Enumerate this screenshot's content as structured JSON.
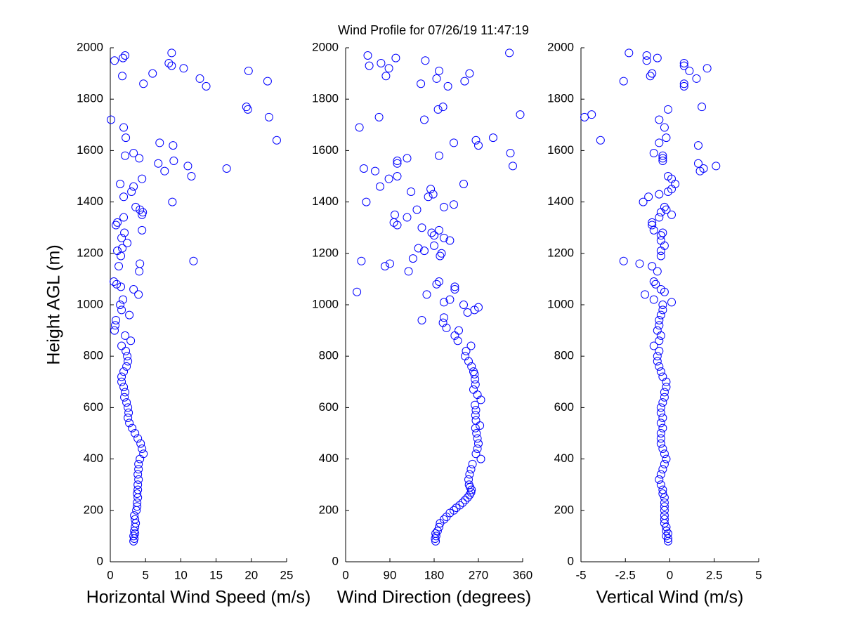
{
  "chart_data": [
    {
      "type": "scatter",
      "title": "Wind Profile for  07/26/19 11:47:19",
      "xlabel": "Horizontal Wind Speed (m/s)",
      "ylabel": "Height AGL (m)",
      "color": "#0000ff",
      "xlim": [
        0,
        25
      ],
      "xticks": [
        0,
        5,
        10,
        15,
        20,
        25
      ],
      "ylim": [
        0,
        2000
      ],
      "yticks": [
        0,
        200,
        400,
        600,
        800,
        1000,
        1200,
        1400,
        1600,
        1800,
        2000
      ],
      "x": [
        3.3,
        3.4,
        3.3,
        3.5,
        3.4,
        3.5,
        3.6,
        3.5,
        3.4,
        3.7,
        3.8,
        3.8,
        3.9,
        3.8,
        3.9,
        3.9,
        4.0,
        3.9,
        4.0,
        4.0,
        4.2,
        4.7,
        4.5,
        4.3,
        3.9,
        3.5,
        3.1,
        2.7,
        2.5,
        2.6,
        2.5,
        2.3,
        2.0,
        2.1,
        1.9,
        1.6,
        1.6,
        1.9,
        2.3,
        2.5,
        2.4,
        2.2,
        1.6,
        2.9,
        2.1,
        0.6,
        0.7,
        0.8,
        2.7,
        1.6,
        1.4,
        1.8,
        4.0,
        3.3,
        1.5,
        0.9,
        0.5,
        4.1,
        1.2,
        4.2,
        11.8,
        1.5,
        1.0,
        1.7,
        2.4,
        1.6,
        2.0,
        4.5,
        0.8,
        1.0,
        1.9,
        4.5,
        4.6,
        4.2,
        3.6,
        8.8,
        1.9,
        3.0,
        3.3,
        1.4,
        4.5,
        11.5,
        7.7,
        16.5,
        11.0,
        6.8,
        9.0,
        4.1,
        2.1,
        3.3,
        8.9,
        7.0,
        23.6,
        2.2,
        1.9,
        0.1,
        22.5,
        19.5,
        19.3,
        13.6,
        4.7,
        22.3,
        12.7,
        1.7,
        6.0,
        19.6,
        10.4,
        8.7,
        8.3,
        0.6,
        1.8,
        2.1,
        8.7
      ],
      "y": [
        80,
        90,
        100,
        110,
        120,
        135,
        150,
        165,
        180,
        200,
        215,
        230,
        250,
        265,
        280,
        300,
        320,
        340,
        360,
        380,
        400,
        420,
        440,
        460,
        480,
        500,
        520,
        540,
        560,
        580,
        600,
        620,
        640,
        660,
        680,
        700,
        720,
        740,
        760,
        780,
        800,
        820,
        840,
        860,
        880,
        900,
        920,
        940,
        960,
        980,
        1000,
        1020,
        1040,
        1060,
        1070,
        1080,
        1090,
        1130,
        1150,
        1160,
        1170,
        1190,
        1210,
        1220,
        1240,
        1260,
        1280,
        1290,
        1310,
        1320,
        1340,
        1350,
        1360,
        1370,
        1380,
        1400,
        1420,
        1440,
        1460,
        1470,
        1490,
        1500,
        1520,
        1530,
        1540,
        1550,
        1560,
        1570,
        1580,
        1590,
        1620,
        1630,
        1640,
        1650,
        1690,
        1720,
        1730,
        1760,
        1770,
        1850,
        1860,
        1870,
        1880,
        1890,
        1900,
        1910,
        1920,
        1930,
        1940,
        1950,
        1960,
        1970,
        1980
      ]
    },
    {
      "type": "scatter",
      "xlabel": "Wind Direction (degrees)",
      "color": "#0000ff",
      "xlim": [
        0,
        360
      ],
      "xticks": [
        0,
        90,
        180,
        270,
        360
      ],
      "ylim": [
        0,
        2000
      ],
      "yticks": [
        0,
        200,
        400,
        600,
        800,
        1000,
        1200,
        1400,
        1600,
        1800,
        2000
      ],
      "x": [
        183,
        182,
        184,
        183,
        187,
        190,
        192,
        200,
        205,
        212,
        220,
        225,
        232,
        238,
        243,
        248,
        252,
        255,
        256,
        253,
        251,
        250,
        252,
        255,
        258,
        275,
        265,
        268,
        270,
        268,
        266,
        264,
        273,
        265,
        264,
        265,
        263,
        275,
        268,
        260,
        264,
        263,
        262,
        260,
        256,
        250,
        243,
        245,
        255,
        228,
        222,
        230,
        205,
        198,
        155,
        200,
        248,
        262,
        270,
        240,
        200,
        212,
        165,
        23,
        222,
        222,
        185,
        190,
        128,
        80,
        90,
        32,
        137,
        192,
        195,
        160,
        148,
        180,
        212,
        200,
        180,
        175,
        190,
        155,
        105,
        98,
        125,
        100,
        145,
        200,
        220,
        42,
        168,
        178,
        133,
        173,
        70,
        240,
        88,
        105,
        60,
        37,
        340,
        105,
        105,
        125,
        190,
        335,
        270,
        220,
        265,
        300,
        28,
        160,
        68,
        355,
        188,
        198,
        208,
        153,
        242,
        185,
        82,
        252,
        190,
        88,
        48,
        72,
        162,
        102,
        45,
        333
      ],
      "y": [
        80,
        90,
        100,
        110,
        120,
        135,
        150,
        165,
        175,
        190,
        200,
        210,
        220,
        230,
        240,
        250,
        260,
        270,
        280,
        290,
        300,
        320,
        340,
        360,
        380,
        400,
        420,
        440,
        460,
        480,
        500,
        520,
        530,
        550,
        570,
        590,
        610,
        630,
        650,
        670,
        690,
        710,
        730,
        740,
        760,
        780,
        800,
        820,
        840,
        860,
        880,
        900,
        910,
        930,
        940,
        950,
        970,
        980,
        990,
        1000,
        1010,
        1020,
        1040,
        1050,
        1060,
        1070,
        1080,
        1090,
        1130,
        1150,
        1160,
        1170,
        1180,
        1190,
        1200,
        1210,
        1220,
        1230,
        1250,
        1260,
        1270,
        1280,
        1290,
        1300,
        1310,
        1320,
        1340,
        1350,
        1370,
        1380,
        1390,
        1400,
        1420,
        1430,
        1440,
        1450,
        1460,
        1470,
        1490,
        1500,
        1520,
        1530,
        1540,
        1550,
        1560,
        1570,
        1580,
        1590,
        1620,
        1630,
        1640,
        1650,
        1690,
        1720,
        1730,
        1740,
        1760,
        1770,
        1850,
        1860,
        1870,
        1880,
        1890,
        1900,
        1910,
        1920,
        1930,
        1940,
        1950,
        1960,
        1970,
        1980
      ]
    },
    {
      "type": "scatter",
      "xlabel": "Vertical Wind (m/s)",
      "color": "#0000ff",
      "xlim": [
        -5,
        5
      ],
      "xticks": [
        -5,
        -2.5,
        0,
        2.5,
        5
      ],
      "ylim": [
        0,
        2000
      ],
      "yticks": [
        0,
        200,
        400,
        600,
        800,
        1000,
        1200,
        1400,
        1600,
        1800,
        2000
      ],
      "x": [
        -0.1,
        -0.1,
        -0.2,
        -0.1,
        -0.2,
        -0.2,
        -0.3,
        -0.3,
        -0.3,
        -0.3,
        -0.3,
        -0.3,
        -0.3,
        -0.4,
        -0.4,
        -0.5,
        -0.6,
        -0.5,
        -0.4,
        -0.3,
        -0.2,
        -0.3,
        -0.4,
        -0.5,
        -0.5,
        -0.5,
        -0.4,
        -0.5,
        -0.4,
        -0.5,
        -0.5,
        -0.4,
        -0.3,
        -0.3,
        -0.2,
        -0.2,
        -0.4,
        -0.5,
        -0.6,
        -0.7,
        -0.7,
        -0.6,
        -0.9,
        -0.6,
        -0.5,
        -0.7,
        -0.6,
        -0.6,
        -0.5,
        -0.4,
        -0.4,
        0.1,
        -0.9,
        -1.4,
        -0.3,
        -0.5,
        -0.8,
        -0.9,
        -0.7,
        -1.0,
        -1.7,
        -2.6,
        -0.5,
        -0.5,
        -0.3,
        -0.5,
        -0.5,
        -0.4,
        -0.9,
        -1.0,
        -1.0,
        -0.6,
        0.1,
        -0.5,
        -0.2,
        -0.3,
        -1.5,
        -1.2,
        -0.6,
        -0.1,
        0.1,
        0.3,
        0.1,
        -0.1,
        1.7,
        1.9,
        2.6,
        1.6,
        -0.4,
        -0.4,
        -0.4,
        -0.9,
        1.6,
        -0.6,
        -3.9,
        -0.2,
        -0.3,
        -0.6,
        -4.8,
        -4.4,
        -0.1,
        1.8,
        0.8,
        0.8,
        -2.6,
        1.5,
        -1.1,
        -1.0,
        1.1,
        2.1,
        0.8,
        0.8,
        -1.3,
        -0.7,
        -1.3,
        -2.3
      ],
      "y": [
        80,
        90,
        100,
        110,
        120,
        135,
        150,
        165,
        180,
        200,
        215,
        230,
        250,
        265,
        280,
        300,
        320,
        340,
        360,
        380,
        400,
        420,
        440,
        460,
        480,
        500,
        520,
        540,
        560,
        580,
        600,
        620,
        640,
        660,
        680,
        700,
        720,
        740,
        760,
        780,
        800,
        820,
        840,
        860,
        880,
        900,
        920,
        940,
        960,
        980,
        1000,
        1010,
        1020,
        1040,
        1050,
        1060,
        1080,
        1090,
        1130,
        1150,
        1160,
        1170,
        1190,
        1210,
        1230,
        1250,
        1270,
        1280,
        1290,
        1310,
        1320,
        1340,
        1350,
        1360,
        1370,
        1380,
        1400,
        1420,
        1430,
        1440,
        1450,
        1470,
        1490,
        1500,
        1520,
        1530,
        1540,
        1550,
        1560,
        1570,
        1580,
        1590,
        1620,
        1630,
        1640,
        1650,
        1690,
        1720,
        1730,
        1740,
        1760,
        1770,
        1850,
        1860,
        1870,
        1880,
        1890,
        1900,
        1910,
        1920,
        1930,
        1940,
        1950,
        1960,
        1970,
        1980
      ]
    }
  ]
}
